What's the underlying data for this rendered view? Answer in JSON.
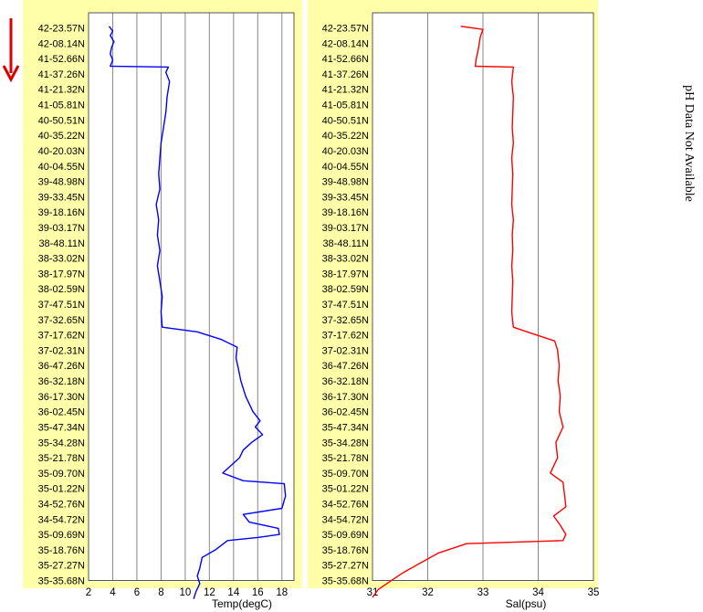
{
  "side_note": "pH Data Not Available",
  "colors": {
    "panel": "#FFFFAA",
    "grid": "#888888",
    "temp": "#0000FF",
    "sal": "#FF0000",
    "arrow": "#DD0000"
  },
  "indicator": "direction-arrow-down",
  "chart_data": [
    {
      "type": "line",
      "title": "",
      "xlabel": "Temp(degC)",
      "ylabel": "",
      "xlim": [
        2,
        19
      ],
      "x_ticks": [
        2,
        4,
        6,
        8,
        10,
        12,
        14,
        16,
        18
      ],
      "grid": true,
      "y_labels": [
        "42-23.57N",
        "42-08.14N",
        "41-52.66N",
        "41-37.26N",
        "41-21.32N",
        "41-05.81N",
        "40-50.51N",
        "40-35.22N",
        "40-20.03N",
        "40-04.55N",
        "39-48.98N",
        "39-33.45N",
        "39-18.16N",
        "39-03.17N",
        "38-48.11N",
        "38-33.02N",
        "38-17.97N",
        "38-02.59N",
        "37-47.51N",
        "37-32.65N",
        "37-17.62N",
        "37-02.31N",
        "36-47.26N",
        "36-32.18N",
        "36-17.30N",
        "36-02.45N",
        "35-47.34N",
        "35-34.28N",
        "35-21.78N",
        "35-09.70N",
        "35-01.22N",
        "34-52.76N",
        "34-54.72N",
        "35-09.69N",
        "35-18.76N",
        "35-27.27N",
        "35-35.68N"
      ],
      "series": [
        {
          "color": "#0000FF",
          "points": [
            [
              3.7,
              -0.1
            ],
            [
              4.0,
              0.2
            ],
            [
              3.8,
              0.5
            ],
            [
              4.1,
              0.9
            ],
            [
              3.9,
              1.3
            ],
            [
              3.8,
              1.7
            ],
            [
              4.0,
              2.1
            ],
            [
              3.8,
              2.5
            ],
            [
              8.6,
              2.55
            ],
            [
              8.4,
              2.9
            ],
            [
              8.7,
              3.5
            ],
            [
              8.5,
              4.5
            ],
            [
              8.4,
              5.5
            ],
            [
              8.2,
              6.5
            ],
            [
              8.0,
              7.5
            ],
            [
              7.9,
              8.5
            ],
            [
              7.8,
              9.5
            ],
            [
              7.9,
              10.5
            ],
            [
              7.6,
              11.5
            ],
            [
              7.8,
              12.5
            ],
            [
              7.7,
              13.5
            ],
            [
              7.9,
              14.5
            ],
            [
              7.7,
              15.5
            ],
            [
              7.9,
              16.5
            ],
            [
              8.1,
              17.5
            ],
            [
              8.0,
              18.5
            ],
            [
              8.1,
              19.5
            ],
            [
              11.0,
              19.8
            ],
            [
              13.0,
              20.3
            ],
            [
              14.3,
              20.8
            ],
            [
              14.2,
              21.5
            ],
            [
              14.4,
              22.2
            ],
            [
              14.6,
              23.0
            ],
            [
              15.0,
              24.0
            ],
            [
              15.6,
              25.0
            ],
            [
              16.2,
              25.6
            ],
            [
              15.8,
              26.0
            ],
            [
              16.4,
              26.5
            ],
            [
              15.5,
              27.0
            ],
            [
              14.8,
              27.5
            ],
            [
              14.5,
              28.0
            ],
            [
              13.1,
              29.0
            ],
            [
              14.8,
              29.5
            ],
            [
              18.2,
              29.7
            ],
            [
              18.3,
              30.5
            ],
            [
              18.0,
              31.3
            ],
            [
              14.8,
              31.7
            ],
            [
              15.3,
              32.2
            ],
            [
              17.7,
              32.6
            ],
            [
              17.8,
              33.0
            ],
            [
              16.0,
              33.2
            ],
            [
              13.5,
              33.4
            ],
            [
              12.5,
              34.0
            ],
            [
              11.4,
              34.5
            ],
            [
              11.2,
              35.2
            ],
            [
              11.0,
              35.7
            ],
            [
              11.2,
              36.2
            ],
            [
              10.9,
              36.7
            ],
            [
              10.7,
              37.2
            ]
          ]
        }
      ]
    },
    {
      "type": "line",
      "title": "",
      "xlabel": "Sal(psu)",
      "ylabel": "",
      "xlim": [
        31,
        35
      ],
      "x_ticks": [
        31,
        32,
        33,
        34,
        35
      ],
      "grid": true,
      "y_labels": [
        "42-23.57N",
        "42-08.14N",
        "41-52.66N",
        "41-37.26N",
        "41-21.32N",
        "41-05.81N",
        "40-50.51N",
        "40-35.22N",
        "40-20.03N",
        "40-04.55N",
        "39-48.98N",
        "39-33.45N",
        "39-18.16N",
        "39-03.17N",
        "38-48.11N",
        "38-33.02N",
        "38-17.97N",
        "38-02.59N",
        "37-47.51N",
        "37-32.65N",
        "37-17.62N",
        "37-02.31N",
        "36-47.26N",
        "36-32.18N",
        "36-17.30N",
        "36-02.45N",
        "35-47.34N",
        "35-34.28N",
        "35-21.78N",
        "35-09.70N",
        "35-01.22N",
        "34-52.76N",
        "34-54.72N",
        "35-09.69N",
        "35-18.76N",
        "35-27.27N",
        "35-35.68N"
      ],
      "series": [
        {
          "color": "#FF0000",
          "points": [
            [
              32.6,
              -0.1
            ],
            [
              33.0,
              0.1
            ],
            [
              32.95,
              0.6
            ],
            [
              32.92,
              1.3
            ],
            [
              32.88,
              2.0
            ],
            [
              32.86,
              2.5
            ],
            [
              33.55,
              2.55
            ],
            [
              33.52,
              3.5
            ],
            [
              33.55,
              4.5
            ],
            [
              33.54,
              5.5
            ],
            [
              33.53,
              6.5
            ],
            [
              33.55,
              7.5
            ],
            [
              33.52,
              8.5
            ],
            [
              33.54,
              9.5
            ],
            [
              33.53,
              10.5
            ],
            [
              33.52,
              11.5
            ],
            [
              33.55,
              12.5
            ],
            [
              33.53,
              13.5
            ],
            [
              33.54,
              14.5
            ],
            [
              33.52,
              15.5
            ],
            [
              33.54,
              16.5
            ],
            [
              33.53,
              17.5
            ],
            [
              33.52,
              18.5
            ],
            [
              33.55,
              19.5
            ],
            [
              33.8,
              19.8
            ],
            [
              34.3,
              20.4
            ],
            [
              34.35,
              21.0
            ],
            [
              34.38,
              22.0
            ],
            [
              34.36,
              23.0
            ],
            [
              34.4,
              24.0
            ],
            [
              34.38,
              25.0
            ],
            [
              34.45,
              26.0
            ],
            [
              34.32,
              27.0
            ],
            [
              34.35,
              28.0
            ],
            [
              34.22,
              29.0
            ],
            [
              34.45,
              29.6
            ],
            [
              34.48,
              30.5
            ],
            [
              34.5,
              31.2
            ],
            [
              34.28,
              31.8
            ],
            [
              34.4,
              32.4
            ],
            [
              34.5,
              33.0
            ],
            [
              34.45,
              33.4
            ],
            [
              32.7,
              33.6
            ],
            [
              32.2,
              34.2
            ],
            [
              31.9,
              34.8
            ],
            [
              31.55,
              35.5
            ],
            [
              31.3,
              36.1
            ],
            [
              31.1,
              36.6
            ],
            [
              31.0,
              37.1
            ]
          ]
        }
      ]
    }
  ]
}
